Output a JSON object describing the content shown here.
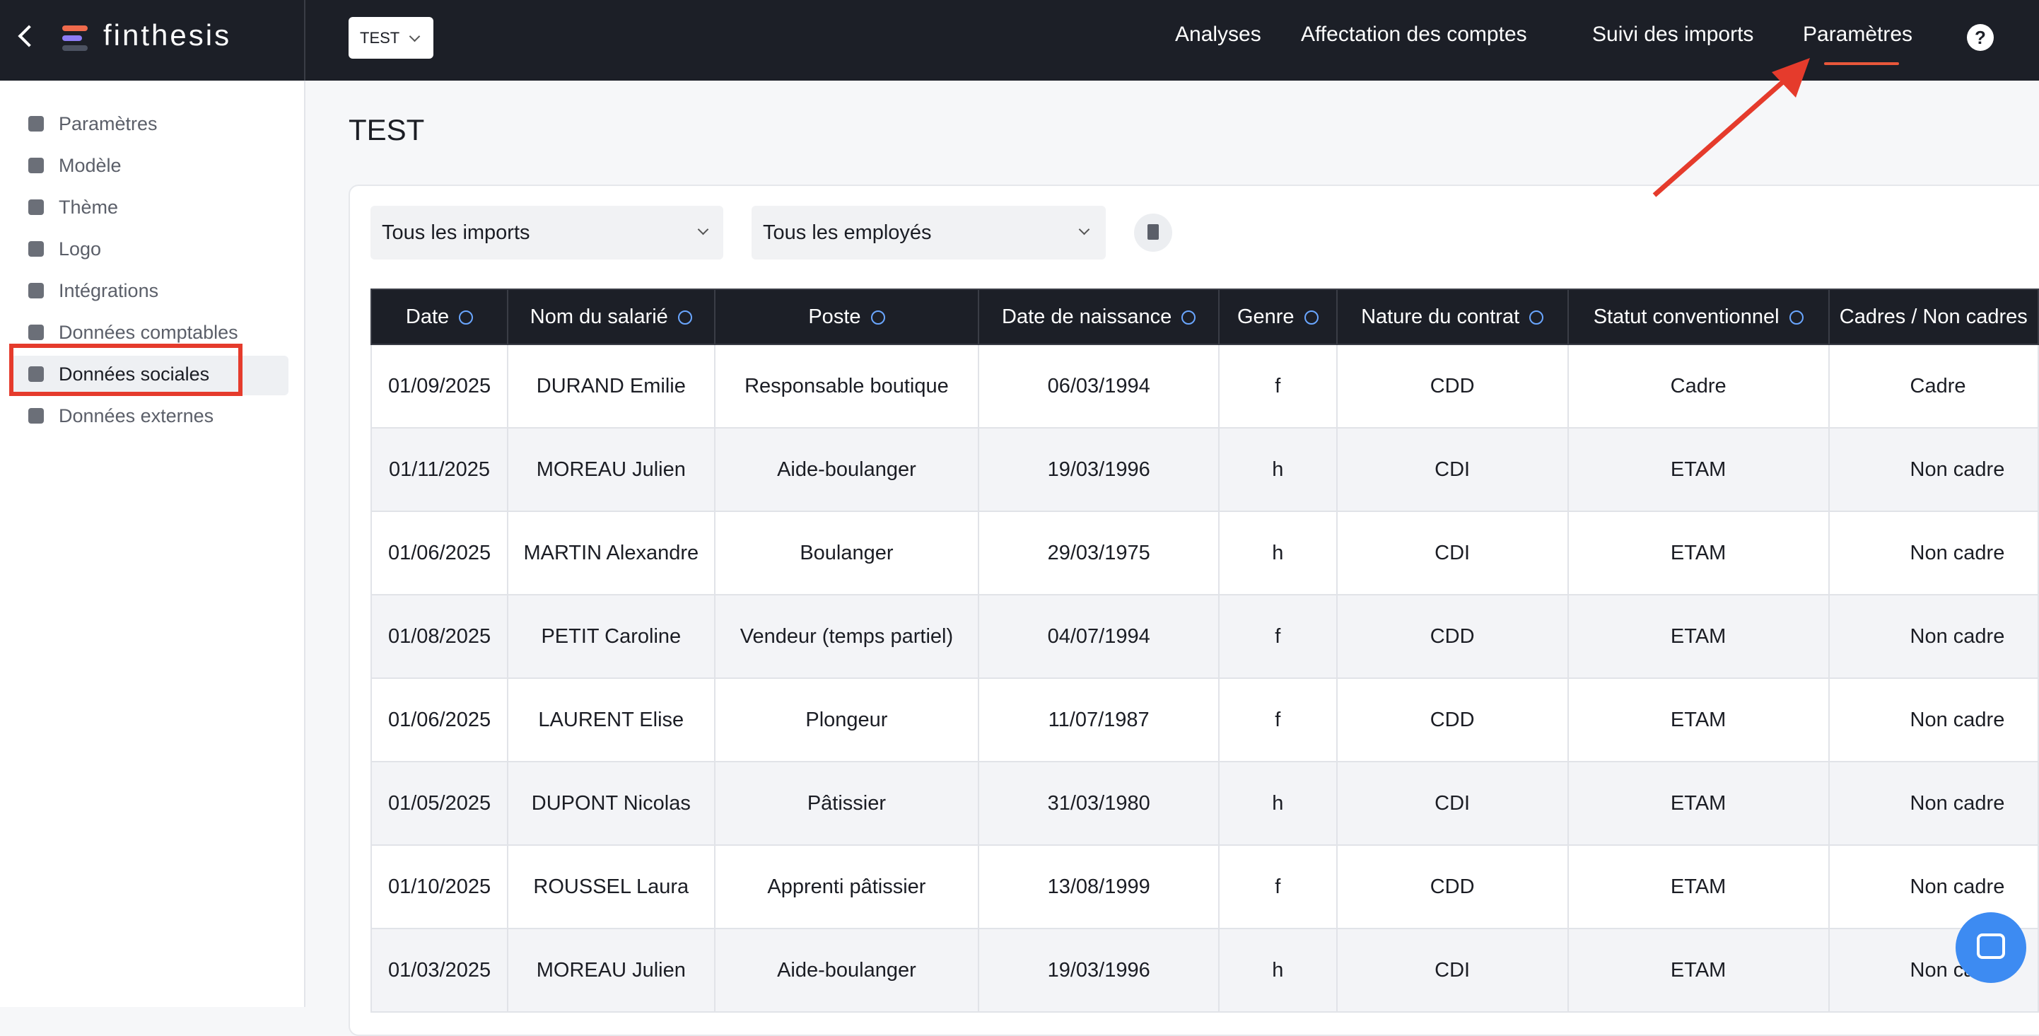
{
  "header": {
    "brand": "finthesis",
    "workspace": "TEST",
    "nav": [
      "Analyses",
      "Affectation des comptes",
      "Suivi des imports",
      "Paramètres"
    ],
    "help": "?"
  },
  "sidebar": {
    "items": [
      "Paramètres",
      "Modèle",
      "Thème",
      "Logo",
      "Intégrations",
      "Données comptables",
      "Données sociales",
      "Données externes"
    ]
  },
  "page": {
    "title": "TEST"
  },
  "filters": [
    "Tous les imports",
    "Tous les employés"
  ],
  "table": {
    "columns": [
      "Date",
      "Nom du salarié",
      "Poste",
      "Date de naissance",
      "Genre",
      "Nature du contrat",
      "Statut conventionnel",
      "Cadres / Non cadres"
    ],
    "rows": [
      [
        "01/09/2025",
        "DURAND Emilie",
        "Responsable boutique",
        "06/03/1994",
        "f",
        "CDD",
        "Cadre",
        "Cadre"
      ],
      [
        "01/11/2025",
        "MOREAU Julien",
        "Aide-boulanger",
        "19/03/1996",
        "h",
        "CDI",
        "ETAM",
        "Non cadre"
      ],
      [
        "01/06/2025",
        "MARTIN Alexandre",
        "Boulanger",
        "29/03/1975",
        "h",
        "CDI",
        "ETAM",
        "Non cadre"
      ],
      [
        "01/08/2025",
        "PETIT Caroline",
        "Vendeur (temps partiel)",
        "04/07/1994",
        "f",
        "CDD",
        "ETAM",
        "Non cadre"
      ],
      [
        "01/06/2025",
        "LAURENT Elise",
        "Plongeur",
        "11/07/1987",
        "f",
        "CDD",
        "ETAM",
        "Non cadre"
      ],
      [
        "01/05/2025",
        "DUPONT Nicolas",
        "Pâtissier",
        "31/03/1980",
        "h",
        "CDI",
        "ETAM",
        "Non cadre"
      ],
      [
        "01/10/2025",
        "ROUSSEL Laura",
        "Apprenti pâtissier",
        "13/08/1999",
        "f",
        "CDD",
        "ETAM",
        "Non cadre"
      ],
      [
        "01/03/2025",
        "MOREAU Julien",
        "Aide-boulanger",
        "19/03/1996",
        "h",
        "CDI",
        "ETAM",
        "Non cadre"
      ]
    ]
  }
}
